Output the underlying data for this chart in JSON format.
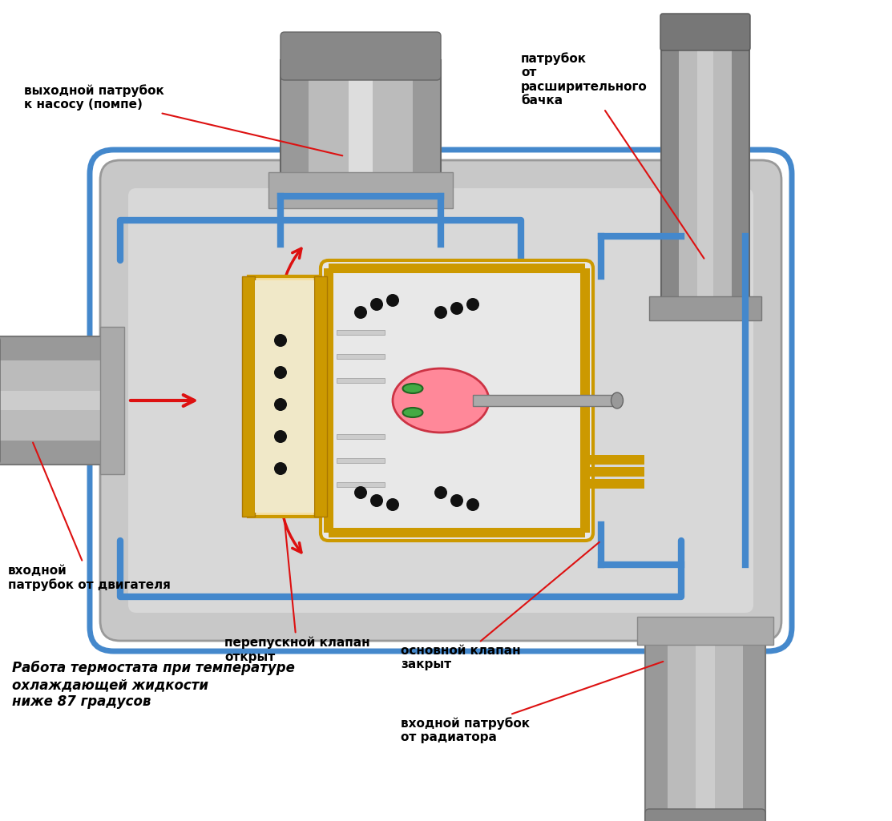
{
  "bg_color": "#ffffff",
  "title": "",
  "labels": {
    "top_left": "выходной патрубок\nк насосу (помпе)",
    "top_right": "патрубок\nот\nрасширительного\nбачка",
    "left": "входной\nпатрубок от двигателя",
    "bypass": "перепускной клапан\nоткрыт",
    "main_valve": "основной клапан\nзакрыт",
    "bottom_right": "входной патрубок\nот радиатора",
    "bottom_left": "Работа термостата при температуре\nохлаждающей жидкости\nниже 87 градусов"
  },
  "colors": {
    "blue_border": "#4488cc",
    "blue_light": "#88bbee",
    "gold": "#cc9900",
    "gold_dark": "#aa7700",
    "body_light": "#cccccc",
    "body_dark": "#888888",
    "body_mid": "#aaaaaa",
    "red_arrow": "#dd1111",
    "black": "#111111",
    "green": "#44aa44",
    "pink_red": "#ff6677",
    "beige": "#f5dfa0",
    "beige_dark": "#d4b070",
    "white": "#ffffff",
    "pipe_dark": "#777777",
    "pipe_light": "#bbbbbb"
  }
}
